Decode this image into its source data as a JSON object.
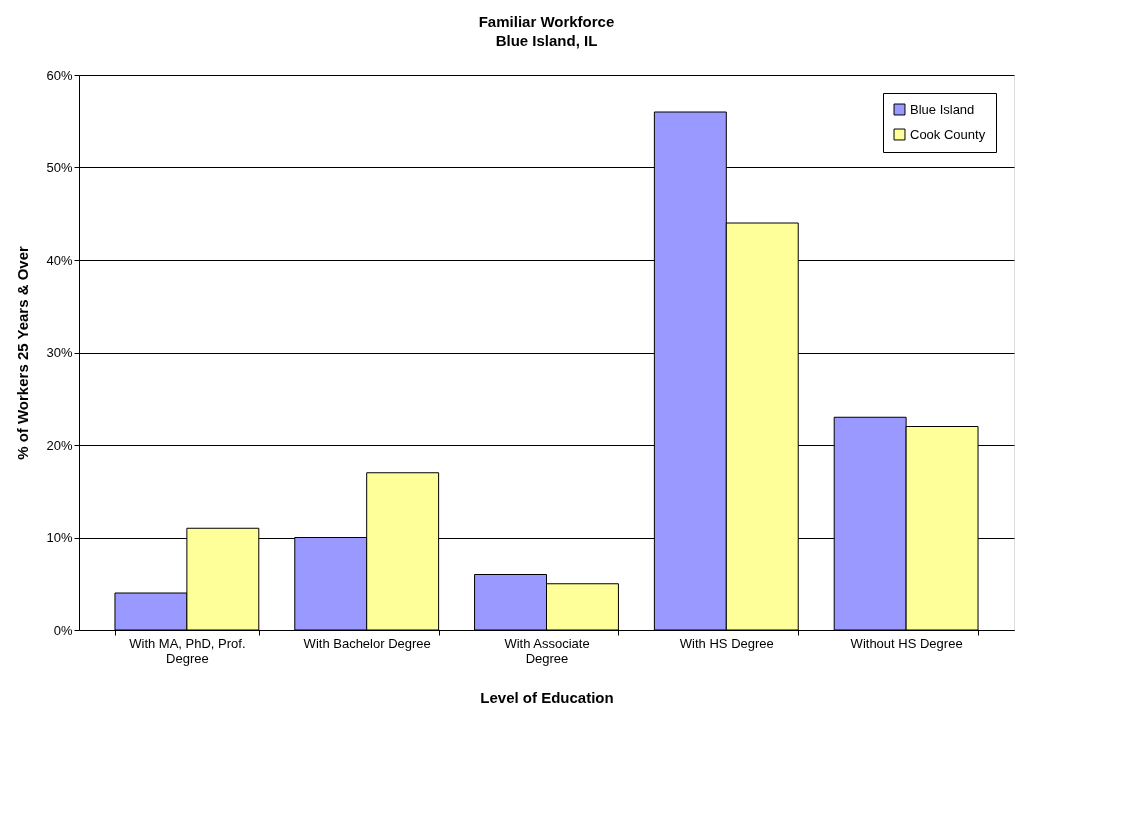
{
  "chart_data": {
    "type": "bar",
    "title": "Familiar Workforce",
    "subtitle": "Blue Island, IL",
    "xlabel": "Level of Education",
    "ylabel": "% of Workers 25 Years & Over",
    "categories": [
      "With MA, PhD, Prof. Degree",
      "With Bachelor Degree",
      "With Associate Degree",
      "With HS Degree",
      "Without HS Degree"
    ],
    "series": [
      {
        "name": "Blue Island",
        "color": "#9999ff",
        "values": [
          4,
          10,
          6,
          56,
          23
        ]
      },
      {
        "name": "Cook County",
        "color": "#ffff99",
        "values": [
          11,
          17,
          5,
          44,
          22
        ]
      }
    ],
    "ylim": [
      0,
      60
    ],
    "yticks": [
      {
        "value": 0,
        "label": "0%"
      },
      {
        "value": 10,
        "label": "10%"
      },
      {
        "value": 20,
        "label": "20%"
      },
      {
        "value": 30,
        "label": "30%"
      },
      {
        "value": 40,
        "label": "40%"
      },
      {
        "value": 50,
        "label": "50%"
      },
      {
        "value": 60,
        "label": "60%"
      }
    ],
    "grid": "y",
    "legend": "top right"
  }
}
